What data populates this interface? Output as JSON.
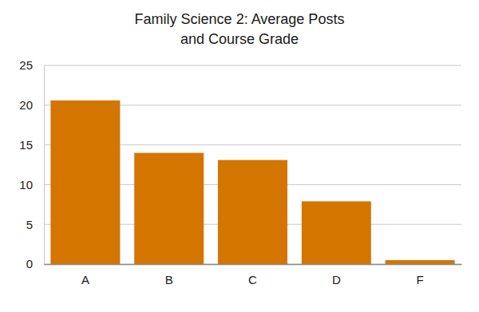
{
  "chart_data": {
    "type": "bar",
    "title": "Family Science 2:  Average Posts\nand Course Grade",
    "categories": [
      "A",
      "B",
      "C",
      "D",
      "F"
    ],
    "values": [
      20.6,
      14,
      13.1,
      7.9,
      0.5
    ],
    "color": "#d47500",
    "ylim": [
      0,
      25
    ],
    "yticks": [
      0,
      5,
      10,
      15,
      20,
      25
    ],
    "grid": true
  }
}
